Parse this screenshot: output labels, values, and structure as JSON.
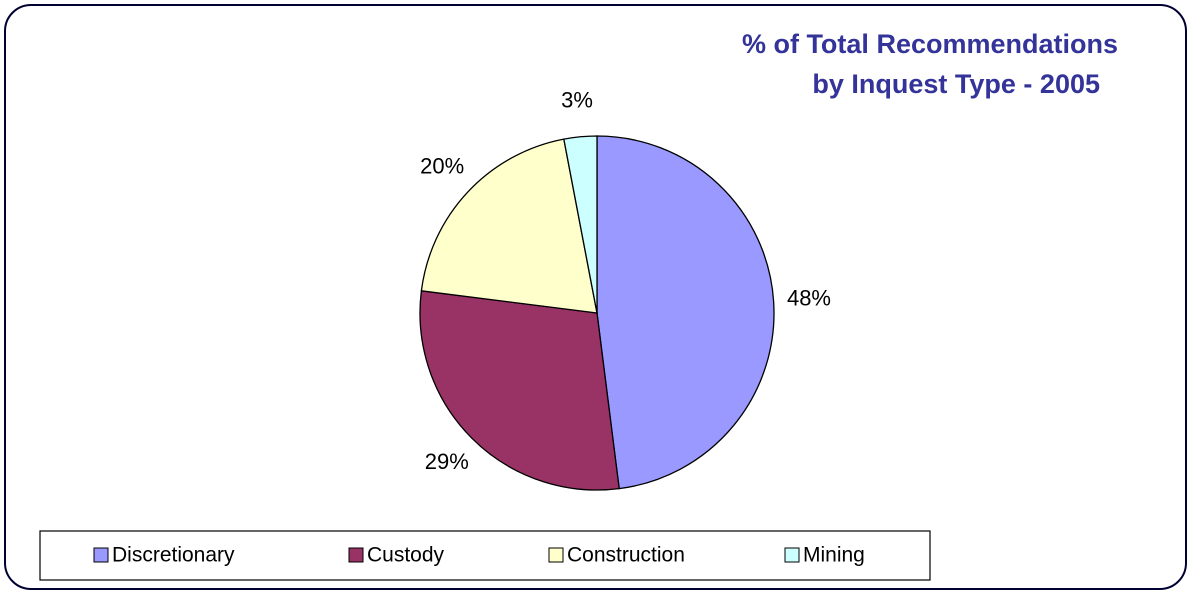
{
  "chart_data": {
    "type": "pie",
    "title": [
      "% of Total Recommendations",
      "by Inquest Type - 2005"
    ],
    "categories": [
      "Discretionary",
      "Custody",
      "Construction",
      "Mining"
    ],
    "values": [
      48,
      29,
      20,
      3
    ],
    "value_labels": [
      "48%",
      "29%",
      "20%",
      "3%"
    ],
    "colors": [
      "#9999ff",
      "#993366",
      "#ffffcc",
      "#ccffff"
    ],
    "legend": "bottom"
  }
}
